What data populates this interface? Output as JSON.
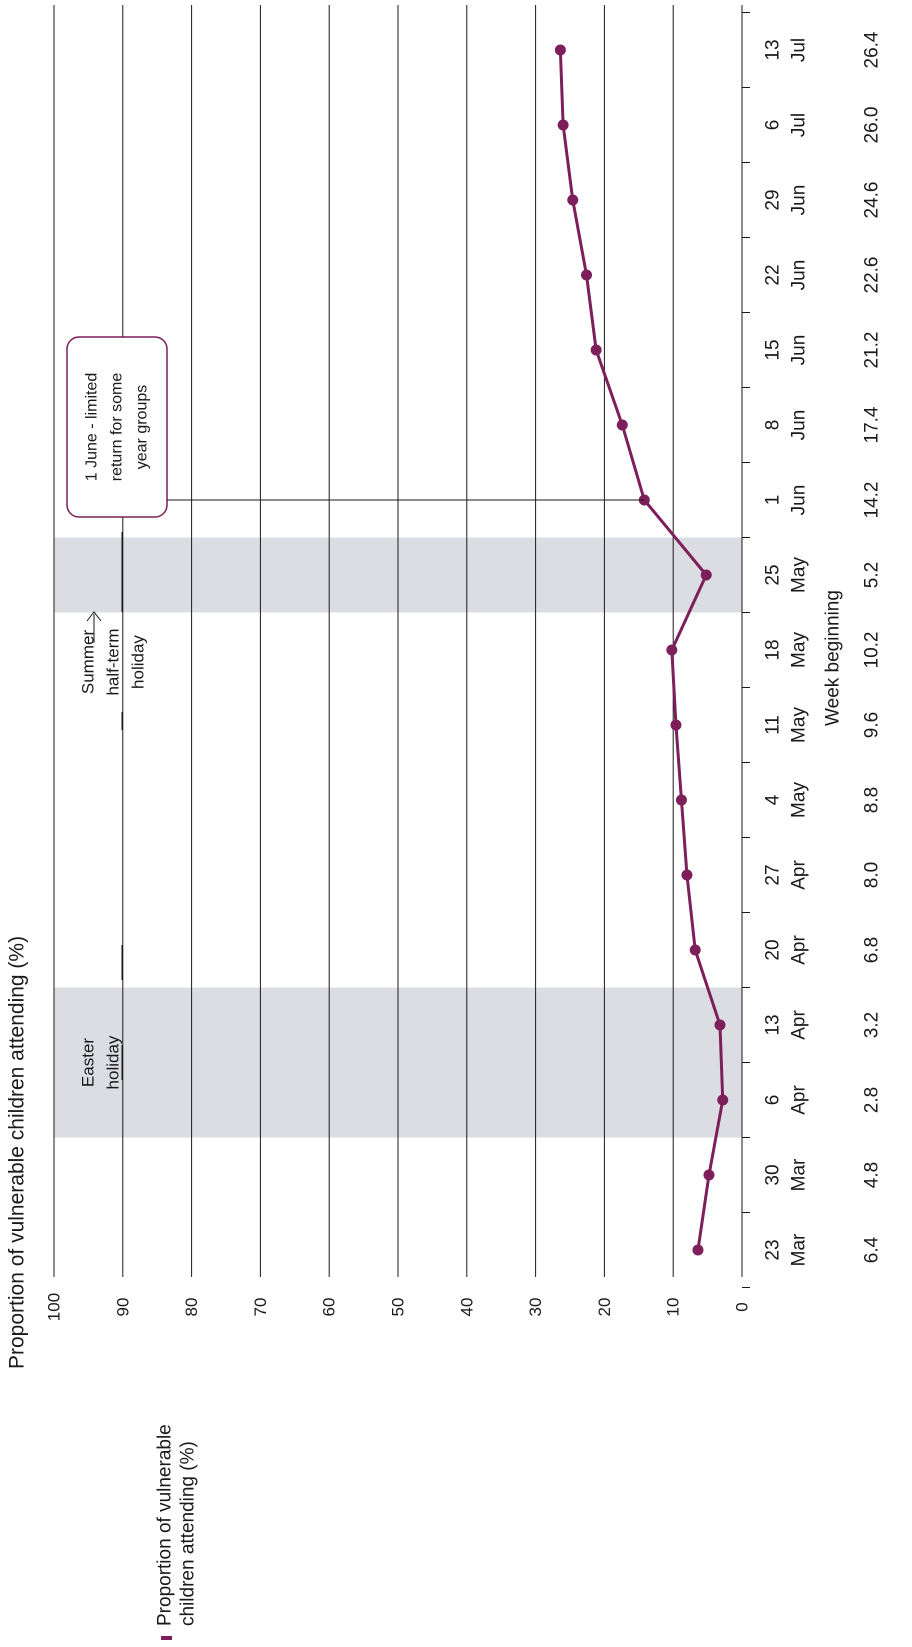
{
  "chart_data": {
    "type": "line",
    "orientation": "rotated-90-clockwise",
    "title": "Proportion of vulnerable children attending (%)",
    "xlabel": "Week beginning",
    "ylabel": "",
    "ylim": [
      0,
      100
    ],
    "y_ticks": [
      "0",
      "10",
      "20",
      "30",
      "40",
      "50",
      "60",
      "70",
      "80",
      "90",
      "100"
    ],
    "grid": true,
    "categories": [
      {
        "day": "23",
        "month": "Mar"
      },
      {
        "day": "30",
        "month": "Mar"
      },
      {
        "day": "6",
        "month": "Apr"
      },
      {
        "day": "13",
        "month": "Apr"
      },
      {
        "day": "20",
        "month": "Apr"
      },
      {
        "day": "27",
        "month": "Apr"
      },
      {
        "day": "4",
        "month": "May"
      },
      {
        "day": "11",
        "month": "May"
      },
      {
        "day": "18",
        "month": "May"
      },
      {
        "day": "25",
        "month": "May"
      },
      {
        "day": "1",
        "month": "Jun"
      },
      {
        "day": "8",
        "month": "Jun"
      },
      {
        "day": "15",
        "month": "Jun"
      },
      {
        "day": "22",
        "month": "Jun"
      },
      {
        "day": "29",
        "month": "Jun"
      },
      {
        "day": "6",
        "month": "Jul"
      },
      {
        "day": "13",
        "month": "Jul"
      }
    ],
    "value_labels": [
      "6.4",
      "4.8",
      "2.8",
      "3.2",
      "6.8",
      "8.0",
      "8.8",
      "9.6",
      "10.2",
      "5.2",
      "14.2",
      "17.4",
      "21.2",
      "22.6",
      "24.6",
      "26.0",
      "26.4"
    ],
    "series": [
      {
        "name": "Proportion of vulnerable children attending (%)",
        "color": "#7d1f5a",
        "values": [
          6.4,
          4.8,
          2.8,
          3.2,
          6.8,
          8.0,
          8.8,
          9.6,
          10.2,
          5.2,
          14.2,
          17.4,
          21.2,
          22.6,
          24.6,
          26.0,
          26.4
        ]
      }
    ],
    "shaded_periods": [
      {
        "label_lines": [
          "Easter",
          "holiday"
        ],
        "from_index": 2,
        "to_index": 3
      },
      {
        "label_lines": [
          "Summer",
          "half-term",
          "holiday"
        ],
        "from_index": 9,
        "to_index": 9
      }
    ],
    "annotations": [
      {
        "text_lines": [
          "1 June - limited",
          "return for some",
          "year groups"
        ],
        "at_index": 10
      }
    ],
    "legend": {
      "placement": "bottom-left",
      "lines": [
        "Proportion of vulnerable",
        "children attending (%)"
      ]
    }
  },
  "colors": {
    "series": "#7d1f5a",
    "band": "#dcdce3",
    "text": "#1a1a1a"
  }
}
